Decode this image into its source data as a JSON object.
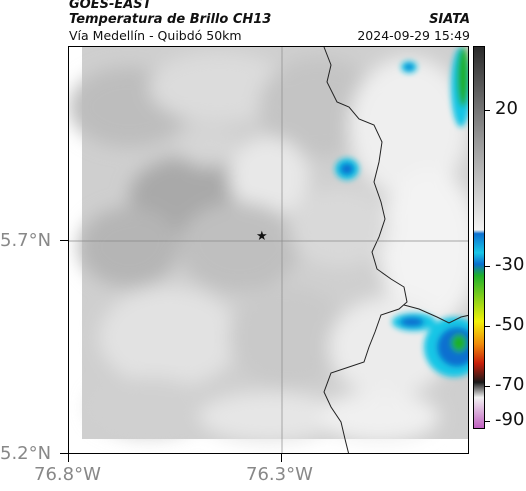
{
  "header": {
    "satellite": "GOES-EAST",
    "product": "Temperatura de Brillo CH13",
    "region": "Vía Medellín - Quibdó 50km",
    "source": "SIATA",
    "timestamp": "2024-09-29 15:49"
  },
  "map": {
    "longitude_labels": [
      "76.8°W",
      "76.3°W"
    ],
    "latitude_labels": [
      "5.7°N",
      "5.2°N"
    ],
    "marker": "star-icon"
  },
  "colorbar": {
    "tick_labels": [
      "20",
      "-30",
      "-50",
      "-70",
      "-90"
    ],
    "colors": {
      "warm_top": "#2a2a2a",
      "gray_mid": "#9a9a9a",
      "light": "#f2f2f2",
      "blue": "#0a6fd0",
      "cyan": "#19c6e6",
      "green": "#1fb02a",
      "yellow": "#f2f20a",
      "orange": "#f08a0a",
      "red": "#c81e0a",
      "dark": "#1a1a1a",
      "magenta": "#c060c0"
    }
  }
}
